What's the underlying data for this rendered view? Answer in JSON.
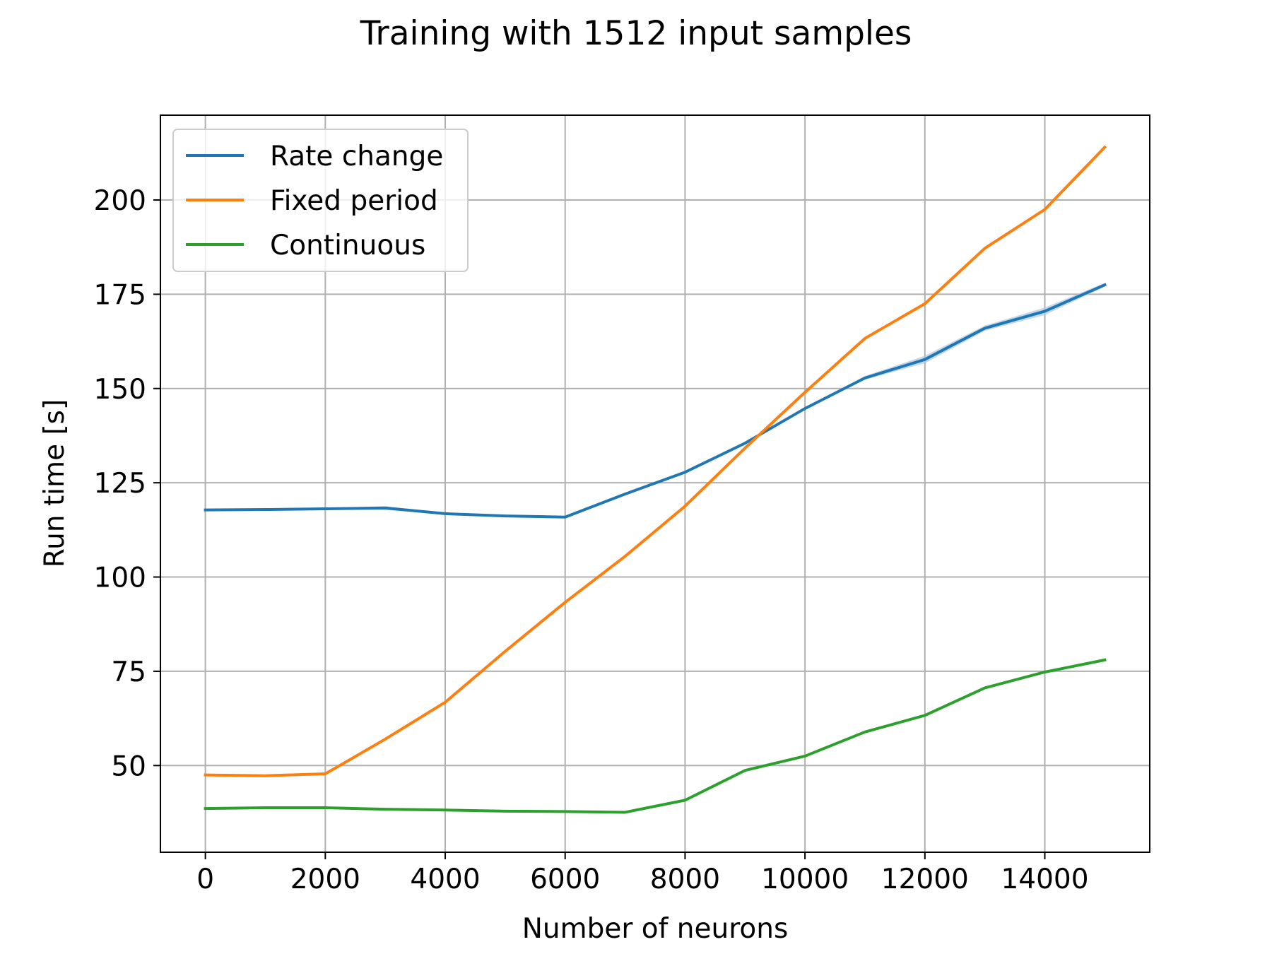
{
  "chart_data": {
    "type": "line",
    "title": "Training with 1512 input samples",
    "xlabel": "Number of neurons",
    "ylabel": "Run time [s]",
    "xlim": [
      -750,
      15750
    ],
    "ylim": [
      27,
      222.5
    ],
    "xticks": [
      0,
      2000,
      4000,
      6000,
      8000,
      10000,
      12000,
      14000
    ],
    "yticks": [
      50,
      75,
      100,
      125,
      150,
      175,
      200
    ],
    "grid": true,
    "legend_position": "upper left",
    "x": [
      0,
      1000,
      2000,
      3000,
      4000,
      5000,
      6000,
      7000,
      8000,
      9000,
      10000,
      11000,
      12000,
      13000,
      14000,
      15000
    ],
    "series": [
      {
        "name": "Rate change",
        "color": "#1f77b4",
        "band_color": "#a9c7e2",
        "values": [
          117.8,
          117.9,
          118.1,
          118.3,
          116.8,
          116.2,
          115.9,
          122.0,
          127.8,
          135.5,
          144.7,
          152.8,
          157.7,
          166.0,
          170.5,
          177.5
        ],
        "band_lower": [
          117.6,
          117.7,
          117.9,
          117.8,
          116.6,
          116.0,
          115.7,
          121.8,
          127.6,
          135.3,
          144.5,
          152.3,
          156.7,
          165.3,
          169.5,
          177.0
        ],
        "band_upper": [
          118.0,
          118.1,
          118.3,
          118.8,
          117.0,
          116.4,
          116.1,
          122.2,
          128.0,
          135.7,
          144.9,
          153.3,
          158.7,
          166.7,
          171.5,
          178.0
        ]
      },
      {
        "name": "Fixed period",
        "color": "#ff7f0e",
        "values": [
          47.5,
          47.3,
          47.8,
          57.0,
          66.8,
          80.3,
          93.3,
          105.5,
          118.8,
          134.2,
          149.0,
          163.3,
          172.5,
          187.2,
          197.5,
          214.0
        ]
      },
      {
        "name": "Continuous",
        "color": "#2ca02c",
        "values": [
          38.6,
          38.8,
          38.8,
          38.4,
          38.2,
          37.9,
          37.8,
          37.6,
          40.8,
          48.7,
          52.5,
          58.9,
          63.3,
          70.6,
          74.8,
          78.0
        ]
      }
    ]
  }
}
